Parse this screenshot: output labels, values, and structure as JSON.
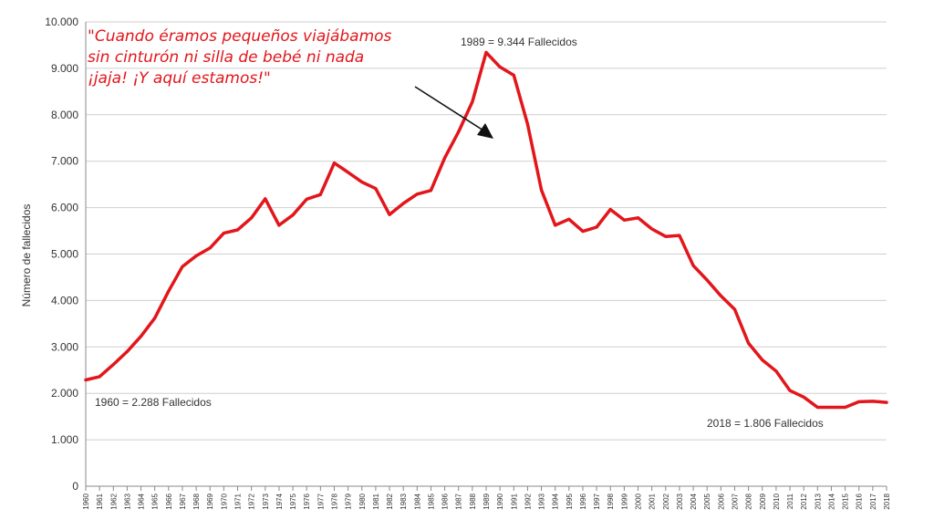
{
  "chart_data": {
    "type": "line",
    "ylabel": "Número de fallecidos",
    "xlabel": "",
    "ylim": [
      0,
      10000
    ],
    "yticks": [
      "0",
      "1.000",
      "2.000",
      "3.000",
      "4.000",
      "5.000",
      "6.000",
      "7.000",
      "8.000",
      "9.000",
      "10.000"
    ],
    "grid": true,
    "series_color": "#e2161b",
    "x": [
      1960,
      1961,
      1962,
      1963,
      1964,
      1965,
      1966,
      1967,
      1968,
      1969,
      1970,
      1971,
      1972,
      1973,
      1974,
      1975,
      1976,
      1977,
      1978,
      1979,
      1980,
      1981,
      1982,
      1983,
      1984,
      1985,
      1986,
      1987,
      1988,
      1989,
      1990,
      1991,
      1992,
      1993,
      1994,
      1995,
      1996,
      1997,
      1998,
      1999,
      2000,
      2001,
      2002,
      2003,
      2004,
      2005,
      2006,
      2007,
      2008,
      2009,
      2010,
      2011,
      2012,
      2013,
      2014,
      2015,
      2016,
      2017,
      2018
    ],
    "values": [
      2288,
      2360,
      2620,
      2900,
      3230,
      3620,
      4200,
      4730,
      4960,
      5130,
      5450,
      5520,
      5780,
      6190,
      5620,
      5840,
      6180,
      6280,
      6960,
      6760,
      6550,
      6410,
      5850,
      6090,
      6290,
      6370,
      7070,
      7630,
      8280,
      9344,
      9030,
      8850,
      7800,
      6380,
      5620,
      5750,
      5490,
      5580,
      5960,
      5730,
      5780,
      5540,
      5380,
      5400,
      4750,
      4440,
      4100,
      3810,
      3080,
      2720,
      2480,
      2060,
      1920,
      1700,
      1700,
      1700,
      1820,
      1830,
      1806
    ],
    "annotations": [
      {
        "text": "1989 = 9.344 Fallecidos"
      },
      {
        "text": "1960 = 2.288 Fallecidos"
      },
      {
        "text": "2018 = 1.806 Fallecidos"
      }
    ],
    "quote": {
      "lines": [
        "\"Cuando éramos pequeños viajábamos",
        "sin cinturón ni silla de bebé ni nada",
        "¡jaja! ¡Y aquí estamos!\""
      ],
      "color": "#e2161b"
    }
  }
}
